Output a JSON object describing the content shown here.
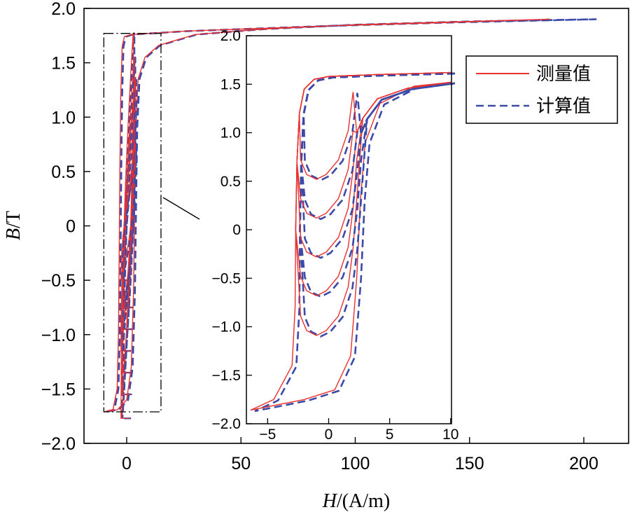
{
  "chart_data": {
    "type": "line",
    "xlabel": {
      "italic": "H",
      "rest": "/(A/m)"
    },
    "ylabel": {
      "italic": "B",
      "rest": "/T"
    },
    "xlim": [
      -20,
      220
    ],
    "ylim": [
      -2.0,
      2.0
    ],
    "x_ticks": [
      0,
      50,
      100,
      150,
      200
    ],
    "x_tick_labels": [
      "0",
      "50",
      "100",
      "150",
      "200"
    ],
    "y_ticks": [
      2.0,
      1.5,
      1.0,
      0.5,
      0,
      -0.5,
      -1.0,
      -1.5,
      -2.0
    ],
    "y_tick_labels": [
      "2.0",
      "1.5",
      "1.0",
      "0.5",
      "0",
      "−0.5",
      "−1.0",
      "−1.5",
      "−2.0"
    ],
    "legend": [
      {
        "label": "测量值",
        "color": "#e8312f",
        "dash": "solid"
      },
      {
        "label": "计算值",
        "color": "#3b4aa8",
        "dash": "dashed"
      }
    ],
    "legend_position": "top-right",
    "zoom_box": {
      "x": [
        -10,
        15
      ],
      "y": [
        -1.71,
        1.77
      ]
    },
    "series": [
      {
        "name": "测量值",
        "description": "minor hysteresis loops, peak B values",
        "peak_B": [
          1.77,
          1.55,
          1.35,
          1.15,
          0.95,
          0.75,
          0.5
        ],
        "major_loop_tip": {
          "H": 185,
          "B": 1.9
        }
      },
      {
        "name": "计算值",
        "description": "minor hysteresis loops, peak B values",
        "peak_B": [
          1.77,
          1.55,
          1.35,
          1.15,
          0.95,
          0.75,
          0.5
        ],
        "major_loop_tip": {
          "H": 205,
          "B": 1.9
        }
      }
    ],
    "inset": {
      "xlim": [
        -7,
        10
      ],
      "ylim": [
        -2.0,
        2.0
      ],
      "x_ticks": [
        -5,
        0,
        5,
        10
      ],
      "x_tick_labels": [
        "−5",
        "0",
        "5",
        "10"
      ],
      "y_ticks": [
        2.0,
        1.5,
        1.0,
        0.5,
        0,
        -0.5,
        -1.0,
        -1.5,
        -2.0
      ],
      "y_tick_labels": [
        "2.0",
        "1.5",
        "1.0",
        "0.5",
        "0",
        "−0.5",
        "−1.0",
        "−1.5",
        "−2.0"
      ],
      "loops": [
        {
          "Bmin": -1.86,
          "Hmin": -6.4,
          "Bmax": 1.62,
          "Hmax": 10,
          "turn_B": -1.45,
          "turn_H": -2.2
        },
        {
          "Bmin": -1.09,
          "Hmin": -2.2,
          "Bmax": 1.52,
          "Hmax": 10,
          "turn_B": -1.07,
          "turn_H": -1.6
        },
        {
          "Bmin": -0.68,
          "Hmin": -2.0,
          "Bmax": 1.52,
          "Hmax": 10,
          "turn_B": -0.66,
          "turn_H": -1.4
        },
        {
          "Bmin": -0.28,
          "Hmin": -1.8,
          "Bmax": 1.52,
          "Hmax": 10,
          "turn_B": -0.27,
          "turn_H": -1.2
        },
        {
          "Bmin": 0.12,
          "Hmin": -1.6,
          "Bmax": 1.52,
          "Hmax": 10,
          "turn_B": 0.12,
          "turn_H": -1.0
        },
        {
          "Bmin": 0.52,
          "Hmin": -1.4,
          "Bmax": 1.52,
          "Hmax": 10,
          "turn_B": 0.51,
          "turn_H": -0.8
        }
      ]
    }
  }
}
